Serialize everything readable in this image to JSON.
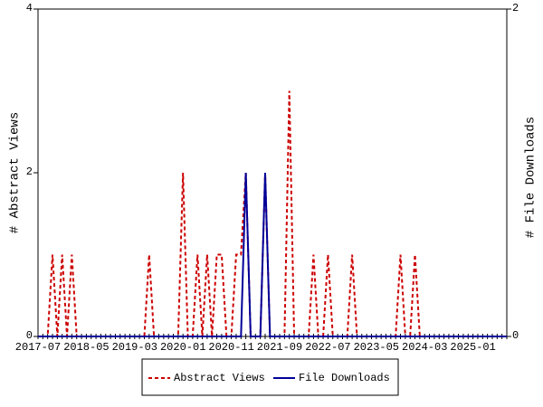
{
  "chart_data": {
    "type": "line",
    "categories": [
      "2017-07",
      null,
      null,
      null,
      null,
      null,
      null,
      null,
      null,
      null,
      "2018-05",
      null,
      null,
      null,
      null,
      null,
      null,
      null,
      null,
      null,
      "2019-03",
      null,
      null,
      null,
      null,
      null,
      null,
      null,
      null,
      null,
      "2020-01",
      null,
      null,
      null,
      null,
      null,
      null,
      null,
      null,
      null,
      "2020-11",
      null,
      null,
      null,
      null,
      null,
      null,
      null,
      null,
      null,
      "2021-09",
      null,
      null,
      null,
      null,
      null,
      null,
      null,
      null,
      null,
      "2022-07",
      null,
      null,
      null,
      null,
      null,
      null,
      null,
      null,
      null,
      "2023-05",
      null,
      null,
      null,
      null,
      null,
      null,
      null,
      null,
      null,
      "2024-03",
      null,
      null,
      null,
      null,
      null,
      null,
      null,
      null,
      null,
      "2025-01",
      null,
      null,
      null,
      null,
      null,
      null,
      null
    ],
    "series": [
      {
        "name": "Abstract Views",
        "color": "#cc0000",
        "dash": true,
        "values": [
          0,
          0,
          0,
          1,
          0,
          1,
          0,
          1,
          0,
          0,
          0,
          0,
          0,
          0,
          0,
          0,
          0,
          0,
          0,
          0,
          0,
          0,
          0,
          1,
          0,
          0,
          0,
          0,
          0,
          0,
          2,
          0,
          0,
          1,
          0,
          1,
          0,
          1,
          1,
          0,
          0,
          1,
          1,
          2,
          0,
          0,
          0,
          2,
          0,
          0,
          0,
          0,
          3,
          0,
          0,
          0,
          0,
          1,
          0,
          0,
          1,
          0,
          0,
          0,
          0,
          1,
          0,
          0,
          0,
          0,
          0,
          0,
          0,
          0,
          0,
          1,
          0,
          0,
          1,
          0,
          0,
          0,
          0,
          0,
          0,
          0,
          0,
          0,
          0,
          0,
          0,
          0,
          0,
          0,
          0,
          0,
          0,
          0
        ]
      },
      {
        "name": "File Downloads",
        "color": "#000099",
        "dash": false,
        "axis": "y2",
        "values": [
          0,
          0,
          0,
          0,
          0,
          0,
          0,
          0,
          0,
          0,
          0,
          0,
          0,
          0,
          0,
          0,
          0,
          0,
          0,
          0,
          0,
          0,
          0,
          0,
          0,
          0,
          0,
          0,
          0,
          0,
          0,
          0,
          0,
          0,
          0,
          0,
          0,
          0,
          0,
          0,
          0,
          0,
          0,
          1,
          0,
          0,
          0,
          1,
          0,
          0,
          0,
          0,
          0,
          0,
          0,
          0,
          0,
          0,
          0,
          0,
          0,
          0,
          0,
          0,
          0,
          0,
          0,
          0,
          0,
          0,
          0,
          0,
          0,
          0,
          0,
          0,
          0,
          0,
          0,
          0,
          0,
          0,
          0,
          0,
          0,
          0,
          0,
          0,
          0,
          0,
          0,
          0,
          0,
          0,
          0,
          0,
          0,
          0
        ]
      }
    ],
    "y_label": "# Abstract Views",
    "y2_label": "# File Downloads",
    "ylim": [
      0,
      4
    ],
    "yticks": [
      0,
      2,
      4
    ],
    "y2lim": [
      0,
      2
    ],
    "y2ticks": [
      0,
      2
    ]
  }
}
